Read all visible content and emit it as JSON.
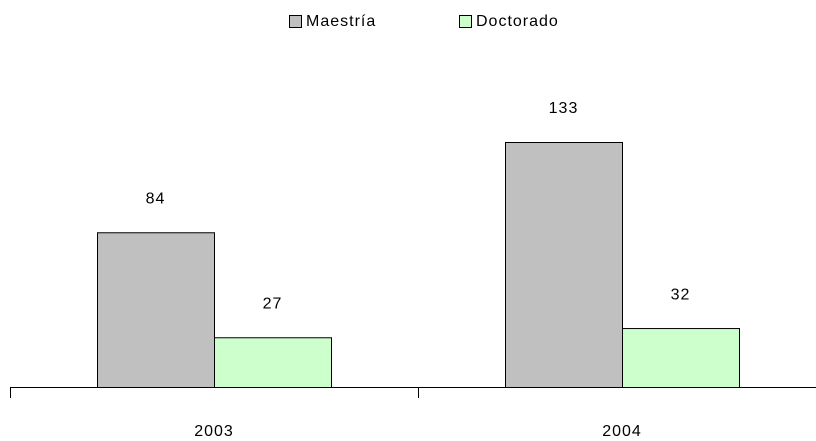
{
  "chart_data": {
    "type": "bar",
    "categories": [
      "2003",
      "2004"
    ],
    "series": [
      {
        "name": "Maestría",
        "color": "#c0c0c0",
        "values": [
          84,
          133
        ]
      },
      {
        "name": "Doctorado",
        "color": "#ccffcc",
        "values": [
          27,
          32
        ]
      }
    ],
    "legend": "top"
  }
}
